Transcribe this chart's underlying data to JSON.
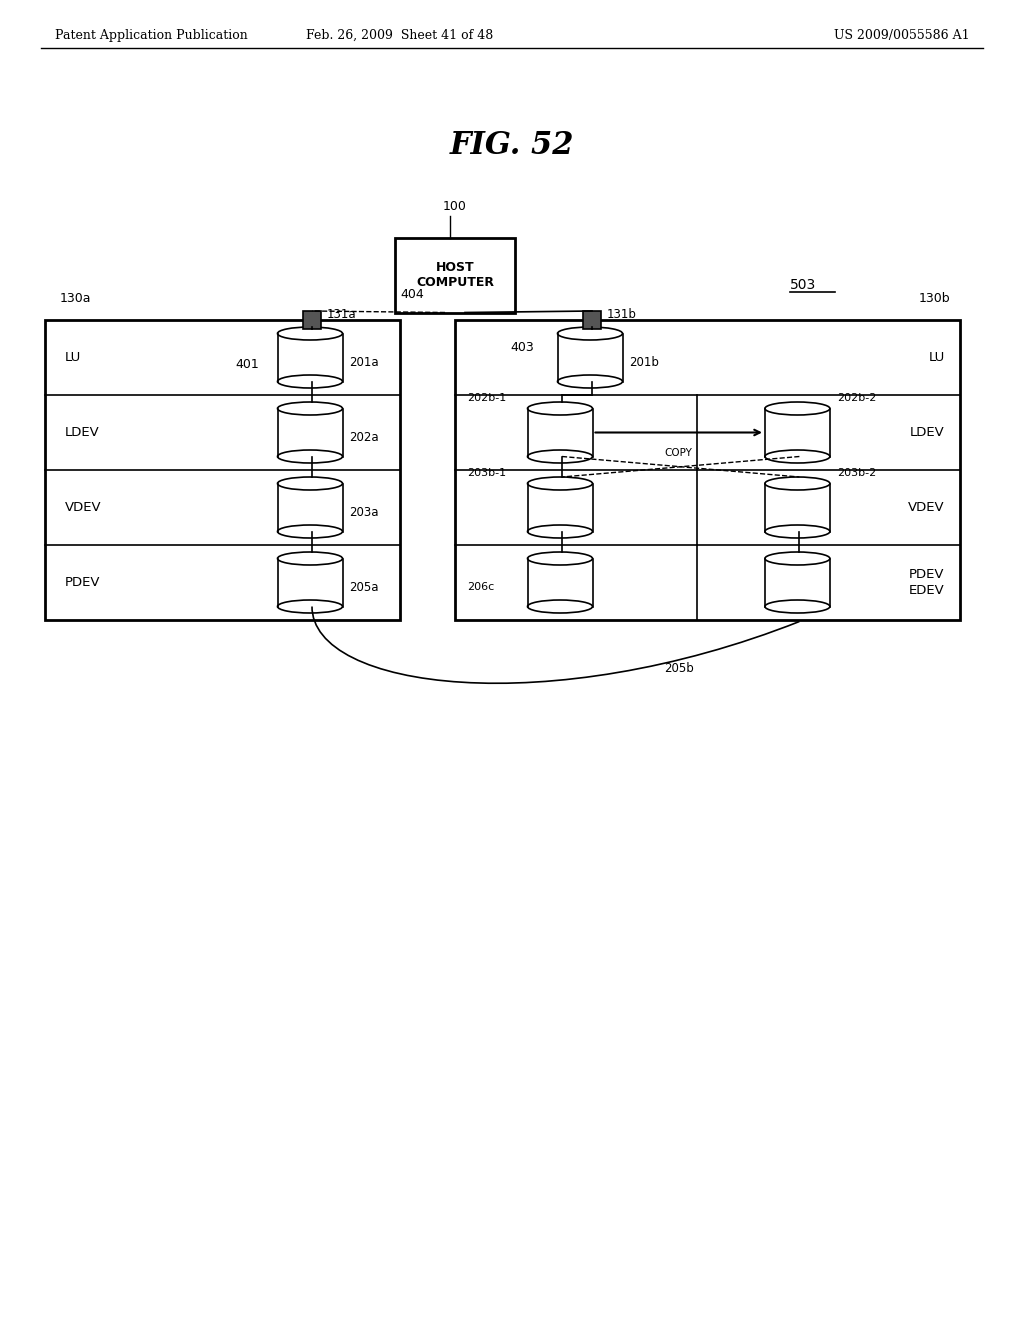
{
  "bg_color": "#ffffff",
  "title": "FIG. 52",
  "header_left": "Patent Application Publication",
  "header_mid": "Feb. 26, 2009  Sheet 41 of 48",
  "header_right": "US 2009/0055586 A1",
  "labels": {
    "host": "HOST\nCOMPUTER",
    "host_id": "100",
    "system_id": "503",
    "left_box_id": "130a",
    "right_box_id": "130b",
    "port_a": "131a",
    "port_b": "131b",
    "conn_401": "401",
    "conn_403": "403",
    "conn_404": "404",
    "lu_a": "LU",
    "lu_b": "LU",
    "ldev_a": "LDEV",
    "ldev_b": "LDEV",
    "vdev_a": "VDEV",
    "vdev_b": "VDEV",
    "pdev_a": "PDEV",
    "pdev_edev": "PDEV\nEDEV",
    "cyl_201a": "201a",
    "cyl_201b": "201b",
    "cyl_202a": "202a",
    "cyl_202b1": "202b-1",
    "cyl_202b2": "202b-2",
    "cyl_203a": "203a",
    "cyl_203b1": "203b-1",
    "cyl_203b2": "203b-2",
    "cyl_205a": "205a",
    "cyl_205b": "205b",
    "cyl_206c": "206c",
    "copy_label": "COPY"
  }
}
